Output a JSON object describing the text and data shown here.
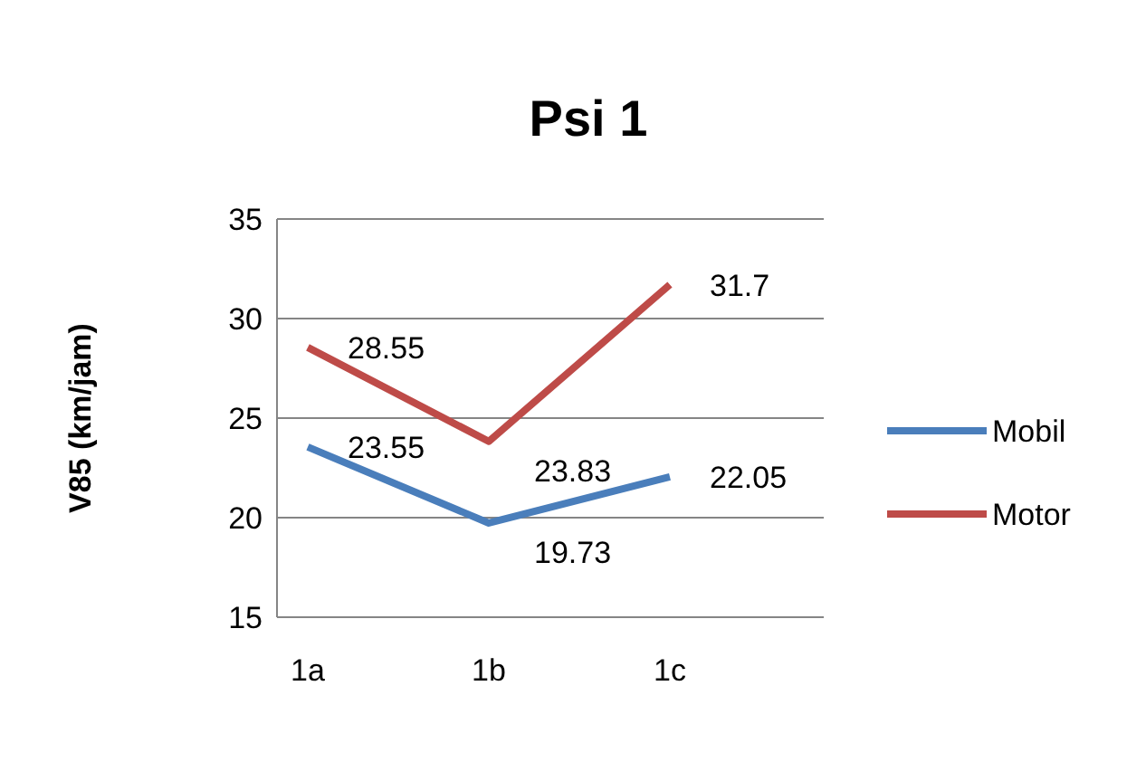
{
  "chart_data": {
    "type": "line",
    "title": "Psi 1",
    "ylabel": "V85 (km/jam)",
    "categories": [
      "1a",
      "1b",
      "1c"
    ],
    "series": [
      {
        "name": "Mobil",
        "color": "#4a7ebb",
        "values": [
          23.55,
          19.73,
          22.05
        ]
      },
      {
        "name": "Motor",
        "color": "#be4b48",
        "values": [
          28.55,
          23.83,
          31.7
        ]
      }
    ],
    "ylim": [
      15,
      35
    ],
    "yticks": [
      15,
      20,
      25,
      30,
      35
    ],
    "grid": "y",
    "legend": "right",
    "data_labels": true,
    "marker": "none",
    "line_style": "solid"
  }
}
